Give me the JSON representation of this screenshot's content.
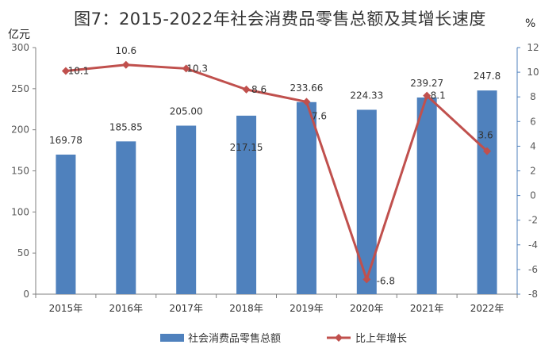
{
  "title": "图7：2015-2022年社会消费品零售总额及其增长速度",
  "left_unit": "亿元",
  "right_unit": "%",
  "colors": {
    "bar": "#4F81BD",
    "line": "#C0504D",
    "axis": "#7F7F7F",
    "right_axis": "#4F81BD"
  },
  "chart_data": {
    "type": "bar",
    "title": "图7：2015-2022年社会消费品零售总额及其增长速度",
    "categories": [
      "2015年",
      "2016年",
      "2017年",
      "2018年",
      "2019年",
      "2020年",
      "2021年",
      "2022年"
    ],
    "series": [
      {
        "name": "社会消费品零售总额",
        "type": "bar",
        "axis": "left",
        "values": [
          169.78,
          185.85,
          205.0,
          217.15,
          233.66,
          224.33,
          239.27,
          247.8
        ],
        "labels": [
          "169.78",
          "185.85",
          "205.00",
          "217.15",
          "233.66",
          "224.33",
          "239.27",
          "247.8"
        ]
      },
      {
        "name": "比上年增长",
        "type": "line",
        "axis": "right",
        "marker": "diamond",
        "values": [
          10.1,
          10.6,
          10.3,
          8.6,
          7.6,
          -6.8,
          8.1,
          3.6
        ],
        "labels": [
          "10.1",
          "10.6",
          "10.3",
          "8.6",
          "7.6",
          "-6.8",
          "8.1",
          "3.6"
        ]
      }
    ],
    "left_axis": {
      "label": "亿元",
      "ylim": [
        0,
        300
      ],
      "ticks": [
        0,
        50,
        100,
        150,
        200,
        250,
        300
      ],
      "tick_labels": [
        "0",
        "50",
        "100",
        "150",
        "200",
        "250",
        "300"
      ]
    },
    "right_axis": {
      "label": "%",
      "ylim": [
        -8,
        12
      ],
      "ticks": [
        -8,
        -6,
        -4,
        -2,
        0,
        2,
        4,
        6,
        8,
        10,
        12
      ],
      "tick_labels": [
        "-8",
        "-6",
        "-4",
        "-2",
        "0",
        "2",
        "4",
        "6",
        "8",
        "10",
        "12"
      ]
    },
    "grid": false,
    "legend_position": "bottom"
  }
}
